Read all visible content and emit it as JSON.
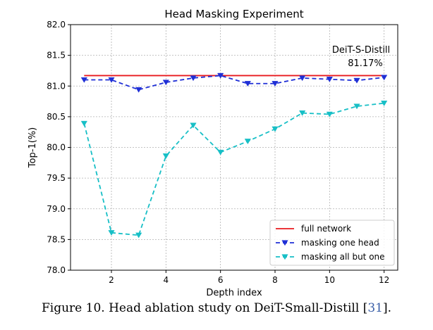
{
  "chart_data": {
    "type": "line",
    "title": "Head Masking Experiment",
    "xlabel": "Depth index",
    "ylabel": "Top-1(%)",
    "xlim": [
      0.5,
      12.5
    ],
    "ylim": [
      78.0,
      82.0
    ],
    "xticks": [
      2,
      4,
      6,
      8,
      10,
      12
    ],
    "xtick_labels": [
      "2",
      "4",
      "6",
      "8",
      "10",
      "12"
    ],
    "yticks": [
      78.0,
      78.5,
      79.0,
      79.5,
      80.0,
      80.5,
      81.0,
      81.5,
      82.0
    ],
    "ytick_labels": [
      "78.0",
      "78.5",
      "79.0",
      "79.5",
      "80.0",
      "80.5",
      "81.0",
      "81.5",
      "82.0"
    ],
    "grid": true,
    "legend_position": "lower-right",
    "annotation": {
      "line1": "DeiT-S-Distill",
      "line2": "81.17%"
    },
    "series": [
      {
        "name": "full network",
        "style": "solid",
        "marker": "none",
        "color": "#e8191e",
        "x": [
          1,
          12
        ],
        "values": [
          81.17,
          81.17
        ]
      },
      {
        "name": "masking one head",
        "style": "dashed",
        "marker": "triangle-down",
        "color": "#1f2fd6",
        "x": [
          1,
          2,
          3,
          4,
          5,
          6,
          7,
          8,
          9,
          10,
          11,
          12
        ],
        "values": [
          81.1,
          81.1,
          80.94,
          81.06,
          81.13,
          81.17,
          81.04,
          81.04,
          81.13,
          81.11,
          81.09,
          81.14
        ]
      },
      {
        "name": "masking all but one",
        "style": "dashed",
        "marker": "triangle-down",
        "color": "#17bfc6",
        "x": [
          1,
          2,
          3,
          4,
          5,
          6,
          7,
          8,
          9,
          10,
          11,
          12
        ],
        "values": [
          80.39,
          78.61,
          78.57,
          79.86,
          80.36,
          79.92,
          80.1,
          80.3,
          80.56,
          80.54,
          80.67,
          80.72
        ]
      }
    ]
  },
  "caption": {
    "text": "Figure 10. Head ablation study on DeiT-Small-Distill [",
    "ref": "31",
    "end": "]."
  }
}
